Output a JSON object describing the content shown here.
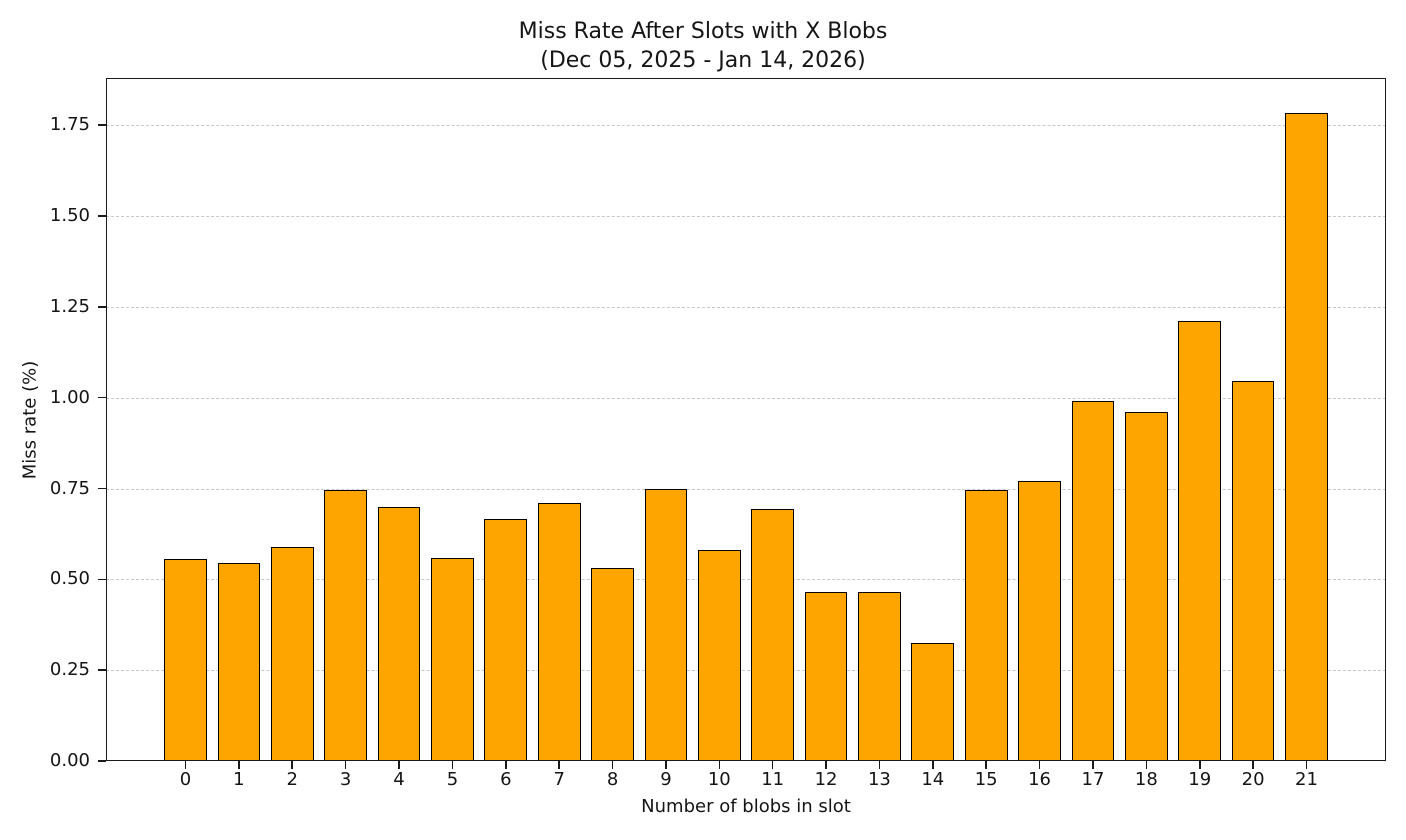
{
  "window": {
    "background": "#ffffff"
  },
  "chart_data": {
    "type": "bar",
    "title": "Miss Rate After Slots with X Blobs",
    "subtitle": "(Dec 05, 2025 - Jan 14, 2026)",
    "xlabel": "Number of blobs in slot",
    "ylabel": "Miss rate (%)",
    "categories": [
      "0",
      "1",
      "2",
      "3",
      "4",
      "5",
      "6",
      "7",
      "8",
      "9",
      "10",
      "11",
      "12",
      "13",
      "14",
      "15",
      "16",
      "17",
      "18",
      "19",
      "20",
      "21"
    ],
    "values": [
      0.555,
      0.545,
      0.59,
      0.745,
      0.7,
      0.56,
      0.665,
      0.71,
      0.53,
      0.75,
      0.58,
      0.695,
      0.465,
      0.465,
      0.325,
      0.745,
      0.77,
      0.99,
      0.96,
      1.21,
      1.045,
      1.785
    ],
    "ylim": [
      0,
      1.88
    ],
    "xlim": [
      -1.49,
      22.49
    ],
    "yticks": [
      0,
      0.25,
      0.5,
      0.75,
      1.0,
      1.25,
      1.5,
      1.75
    ],
    "ytick_labels": [
      "0.00",
      "0.25",
      "0.50",
      "0.75",
      "1.00",
      "1.25",
      "1.50",
      "1.75"
    ],
    "bar_width_fraction": 0.8,
    "bar_color": "#FFA500",
    "bar_edge_color": "#000000",
    "grid": "horizontal",
    "grid_style": "dashed",
    "grid_color": "#c8c8c8",
    "legend": "none",
    "background": "#ffffff"
  }
}
